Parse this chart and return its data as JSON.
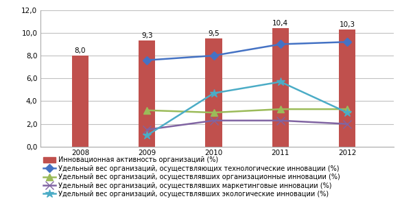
{
  "years": [
    2008,
    2009,
    2010,
    2011,
    2012
  ],
  "bar_values": [
    8.0,
    9.3,
    9.5,
    10.4,
    10.3
  ],
  "bar_color": "#C0504D",
  "bar_labels": [
    "8,0",
    "9,3",
    "9,5",
    "10,4",
    "10,3"
  ],
  "lines": [
    {
      "label": "Удельный вес организаций, осуществляющих технологические инновации (%)",
      "values": [
        null,
        7.6,
        8.0,
        9.0,
        9.2
      ],
      "color": "#4472C4",
      "marker": "D",
      "markersize": 6
    },
    {
      "label": "Удельный вес организаций, осуществлявших организационные инновации (%)",
      "values": [
        null,
        3.2,
        3.0,
        3.3,
        3.3
      ],
      "color": "#9BBB59",
      "marker": "^",
      "markersize": 7
    },
    {
      "label": "Удельный вес организаций, осуществлявших маркетинговые инновации (%)",
      "values": [
        null,
        1.5,
        2.3,
        2.3,
        2.0
      ],
      "color": "#8064A2",
      "marker": "x",
      "markersize": 8
    },
    {
      "label": "Удельный вес организаций, осуществлявших экологические инновации (%)",
      "values": [
        null,
        1.0,
        4.7,
        5.7,
        3.0
      ],
      "color": "#4BACC6",
      "marker": "*",
      "markersize": 9
    }
  ],
  "legend_bar_label": "Инновационная активность организаций (%)",
  "ylim": [
    0,
    12
  ],
  "yticks": [
    0,
    2.0,
    4.0,
    6.0,
    8.0,
    10.0,
    12.0
  ],
  "ytick_labels": [
    "0,0",
    "2,0",
    "4,0",
    "6,0",
    "8,0",
    "10,0",
    "12,0"
  ],
  "bar_width": 0.25,
  "background_color": "#FFFFFF",
  "grid_color": "#C0C0C0",
  "label_fontsize": 7.0,
  "tick_fontsize": 7.5,
  "annotation_fontsize": 7.5,
  "linewidth": 1.8
}
